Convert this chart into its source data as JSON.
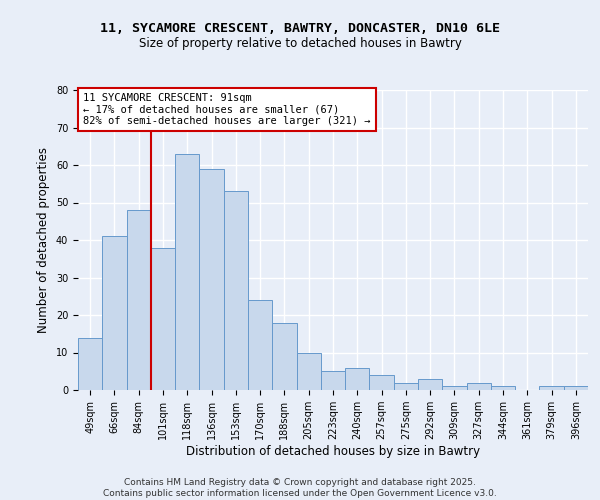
{
  "title1": "11, SYCAMORE CRESCENT, BAWTRY, DONCASTER, DN10 6LE",
  "title2": "Size of property relative to detached houses in Bawtry",
  "xlabel": "Distribution of detached houses by size in Bawtry",
  "ylabel": "Number of detached properties",
  "bar_labels": [
    "49sqm",
    "66sqm",
    "84sqm",
    "101sqm",
    "118sqm",
    "136sqm",
    "153sqm",
    "170sqm",
    "188sqm",
    "205sqm",
    "223sqm",
    "240sqm",
    "257sqm",
    "275sqm",
    "292sqm",
    "309sqm",
    "327sqm",
    "344sqm",
    "361sqm",
    "379sqm",
    "396sqm"
  ],
  "bar_heights": [
    14,
    41,
    48,
    38,
    63,
    59,
    53,
    24,
    18,
    10,
    5,
    6,
    4,
    2,
    3,
    1,
    2,
    1,
    0,
    1,
    1
  ],
  "bar_color": "#c8d8ec",
  "bar_edge_color": "#6699cc",
  "vline_color": "#cc0000",
  "annotation_title": "11 SYCAMORE CRESCENT: 91sqm",
  "annotation_line1": "← 17% of detached houses are smaller (67)",
  "annotation_line2": "82% of semi-detached houses are larger (321) →",
  "annotation_box_color": "#ffffff",
  "annotation_box_edge": "#cc0000",
  "ylim": [
    0,
    80
  ],
  "yticks": [
    0,
    10,
    20,
    30,
    40,
    50,
    60,
    70,
    80
  ],
  "footer1": "Contains HM Land Registry data © Crown copyright and database right 2025.",
  "footer2": "Contains public sector information licensed under the Open Government Licence v3.0.",
  "bg_color": "#e8eef8",
  "plot_bg_color": "#e8eef8",
  "grid_color": "#ffffff",
  "title1_fontsize": 9.5,
  "title2_fontsize": 8.5,
  "tick_fontsize": 7.0,
  "axis_label_fontsize": 8.5,
  "annotation_fontsize": 7.5,
  "footer_fontsize": 6.5
}
